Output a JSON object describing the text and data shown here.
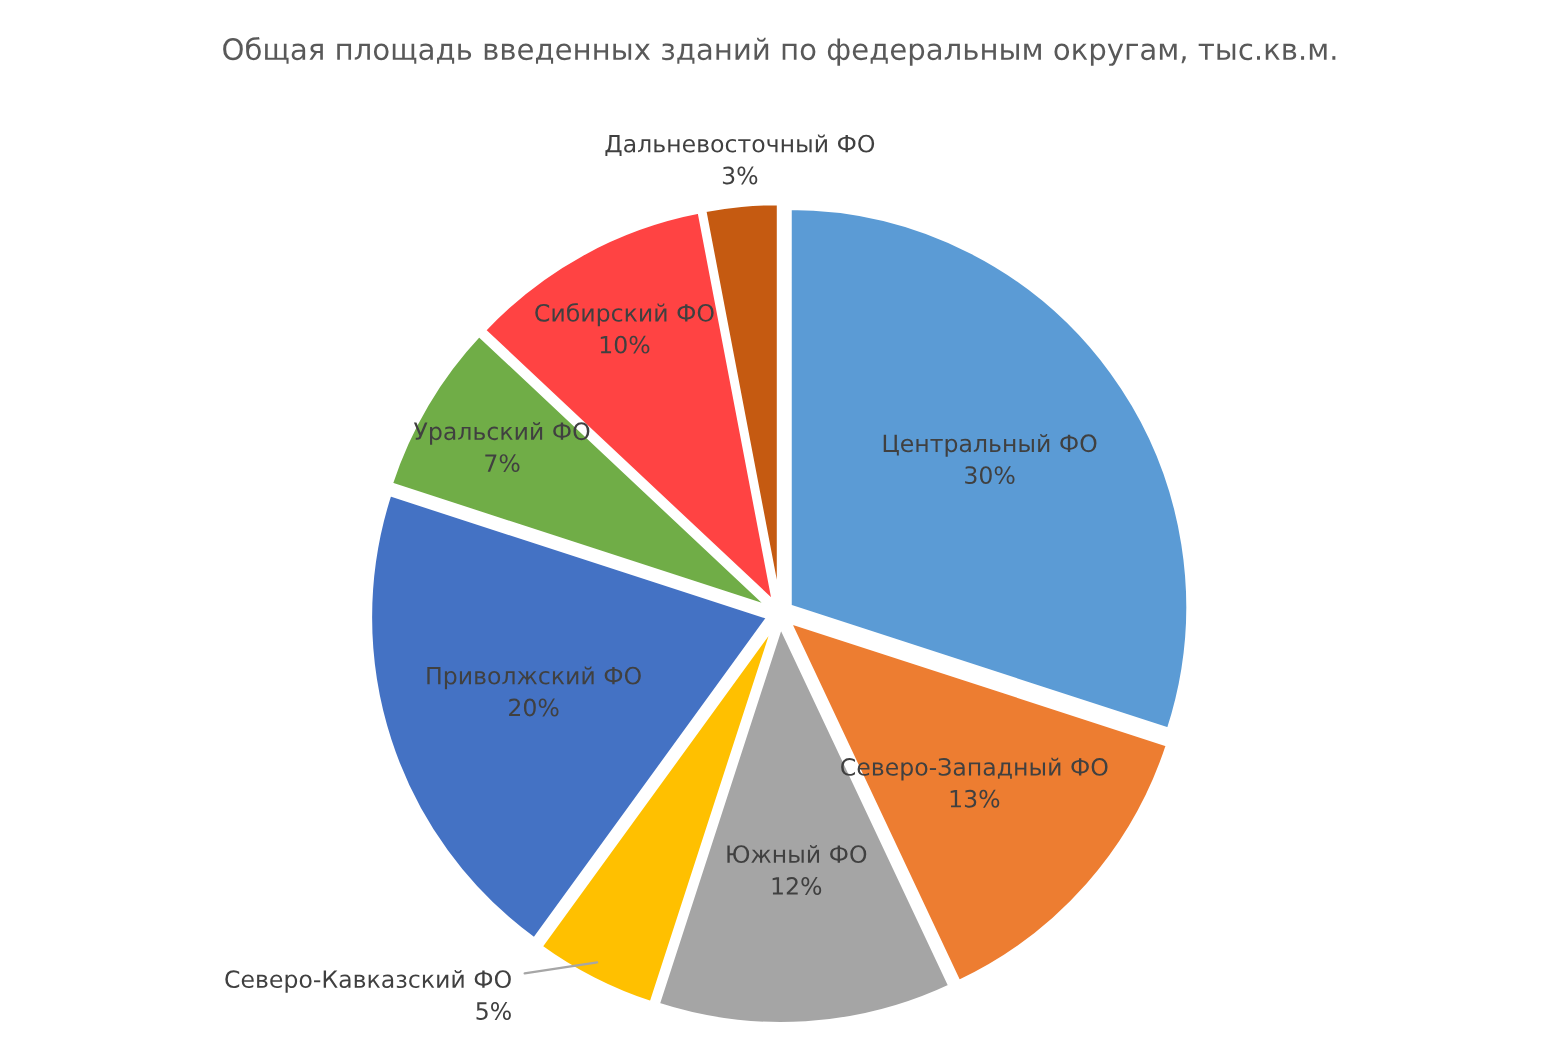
{
  "chart_data": {
    "type": "pie",
    "title": "Общая площадь введенных зданий по федеральным округам, тыс.кв.м.",
    "categories": [
      "Центральный ФО",
      "Северо-Западный ФО",
      "Южный ФО",
      "Северо-Кавказский ФО",
      "Приволжский ФО",
      "Уральский ФО",
      "Сибирский ФО",
      "Дальневосточный ФО"
    ],
    "values": [
      30,
      13,
      12,
      5,
      20,
      7,
      10,
      3
    ],
    "value_labels": [
      "30%",
      "13%",
      "12%",
      "5%",
      "20%",
      "7%",
      "10%",
      "3%"
    ],
    "colors": [
      "#5b9bd5",
      "#ed7d31",
      "#a5a5a5",
      "#ffc000",
      "#4472c4",
      "#70ad47",
      "#ff4343",
      "#c55a11"
    ],
    "legend": false
  }
}
